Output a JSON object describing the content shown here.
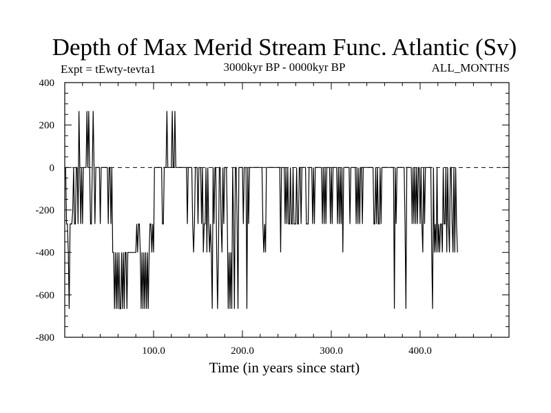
{
  "chart_data": {
    "type": "line",
    "title": "Depth of Max Merid Stream Func. Atlantic (Sv)",
    "subtitle_left": "Expt = tEwty-tevta1",
    "subtitle_center": "3000kyr BP - 0000kyr BP",
    "subtitle_right": "ALL_MONTHS",
    "xlabel": "Time (in years since start)",
    "ylabel": "",
    "xlim": [
      0,
      500
    ],
    "ylim": [
      -800,
      400
    ],
    "x_ticks": [
      100,
      200,
      300,
      400
    ],
    "x_tick_labels": [
      "100.0",
      "200.0",
      "300.0",
      "400.0"
    ],
    "y_ticks": [
      400,
      200,
      0,
      -200,
      -400,
      -600,
      -800
    ],
    "y_tick_labels": [
      "400",
      "200",
      "0",
      "-200",
      "-400",
      "-600",
      "-800"
    ],
    "grid": false,
    "series": [
      {
        "name": "Depth of Max Merid Stream Func.",
        "x_start": 1,
        "x_step": 1,
        "values": [
          0,
          -266,
          -266,
          -400,
          -666,
          -266,
          -266,
          -266,
          -200,
          0,
          -266,
          -266,
          0,
          0,
          -266,
          266,
          0,
          -266,
          0,
          -266,
          0,
          0,
          0,
          0,
          266,
          0,
          266,
          0,
          -266,
          -266,
          0,
          266,
          0,
          -266,
          0,
          0,
          0,
          0,
          0,
          -266,
          0,
          0,
          0,
          0,
          0,
          0,
          0,
          0,
          -266,
          0,
          0,
          -266,
          0,
          -400,
          -400,
          -666,
          -400,
          -666,
          -400,
          -666,
          -400,
          -666,
          -666,
          -400,
          -666,
          -400,
          -666,
          -400,
          -400,
          -666,
          -400,
          -400,
          -400,
          -400,
          -400,
          -400,
          -400,
          -400,
          -400,
          -400,
          -266,
          -400,
          -266,
          -266,
          -400,
          -666,
          -400,
          -666,
          -400,
          -666,
          -400,
          -666,
          -400,
          -666,
          -400,
          -266,
          -266,
          -400,
          -266,
          -400,
          0,
          0,
          0,
          0,
          0,
          0,
          0,
          0,
          0,
          -266,
          -266,
          0,
          0,
          0,
          266,
          0,
          0,
          0,
          0,
          0,
          266,
          0,
          0,
          266,
          0,
          0,
          0,
          0,
          0,
          0,
          0,
          0,
          0,
          0,
          0,
          0,
          0,
          -266,
          0,
          0,
          0,
          0,
          0,
          -266,
          -400,
          -266,
          0,
          0,
          0,
          -266,
          0,
          0,
          0,
          -266,
          0,
          -400,
          -266,
          -266,
          0,
          -400,
          0,
          -266,
          -400,
          -266,
          -400,
          -666,
          0,
          -266,
          0,
          0,
          -400,
          -666,
          -400,
          0,
          0,
          -266,
          -400,
          0,
          -266,
          0,
          0,
          0,
          -266,
          -666,
          -400,
          -666,
          -400,
          -666,
          0,
          -266,
          -666,
          0,
          0,
          -266,
          -666,
          0,
          0,
          0,
          0,
          0,
          -266,
          0,
          0,
          0,
          -666,
          0,
          -266,
          0,
          0,
          0,
          0,
          0,
          0,
          0,
          0,
          0,
          0,
          0,
          0,
          0,
          0,
          0,
          -266,
          -400,
          -266,
          -400,
          0,
          0,
          0,
          0,
          0,
          0,
          0,
          0,
          0,
          0,
          0,
          0,
          0,
          0,
          0,
          0,
          -400,
          0,
          0,
          0,
          0,
          -266,
          0,
          -266,
          0,
          -266,
          -266,
          0,
          -266,
          -266,
          0,
          -266,
          -266,
          -266,
          0,
          -266,
          -266,
          0,
          0,
          -266,
          0,
          0,
          0,
          0,
          0,
          -266,
          -266,
          -266,
          0,
          0,
          0,
          0,
          -266,
          0,
          -266,
          0,
          0,
          0,
          0,
          0,
          0,
          0,
          0,
          -266,
          0,
          -266,
          0,
          -266,
          0,
          0,
          0,
          0,
          -266,
          0,
          -266,
          0,
          0,
          0,
          0,
          0,
          -266,
          0,
          -266,
          0,
          -266,
          0,
          -400,
          0,
          0,
          0,
          0,
          0,
          0,
          0,
          -266,
          0,
          0,
          0,
          0,
          0,
          0,
          -266,
          0,
          -266,
          0,
          -266,
          0,
          0,
          -266,
          0,
          0,
          0,
          0,
          0,
          0,
          0,
          0,
          0,
          0,
          0,
          0,
          -266,
          -266,
          0,
          -266,
          0,
          -266,
          -266,
          0,
          -266,
          0,
          0,
          0,
          0,
          0,
          0,
          0,
          0,
          0,
          0,
          0,
          0,
          0,
          0,
          -666,
          0,
          -266,
          0,
          0,
          0,
          0,
          0,
          0,
          0,
          0,
          0,
          -266,
          -666,
          0,
          0,
          0,
          0,
          0,
          0,
          -266,
          0,
          -266,
          0,
          -266,
          0,
          -266,
          0,
          0,
          -266,
          0,
          -266,
          -400,
          0,
          -266,
          0,
          0,
          0,
          0,
          0,
          0,
          0,
          -400,
          -666,
          0,
          -400,
          -266,
          -400,
          0,
          -400,
          -266,
          -400,
          -266,
          -266,
          -400,
          0,
          -266,
          -266,
          0,
          -400,
          0,
          -266,
          -400,
          0,
          0,
          -266,
          -400,
          0,
          -400,
          0,
          -266,
          -400
        ]
      }
    ]
  }
}
